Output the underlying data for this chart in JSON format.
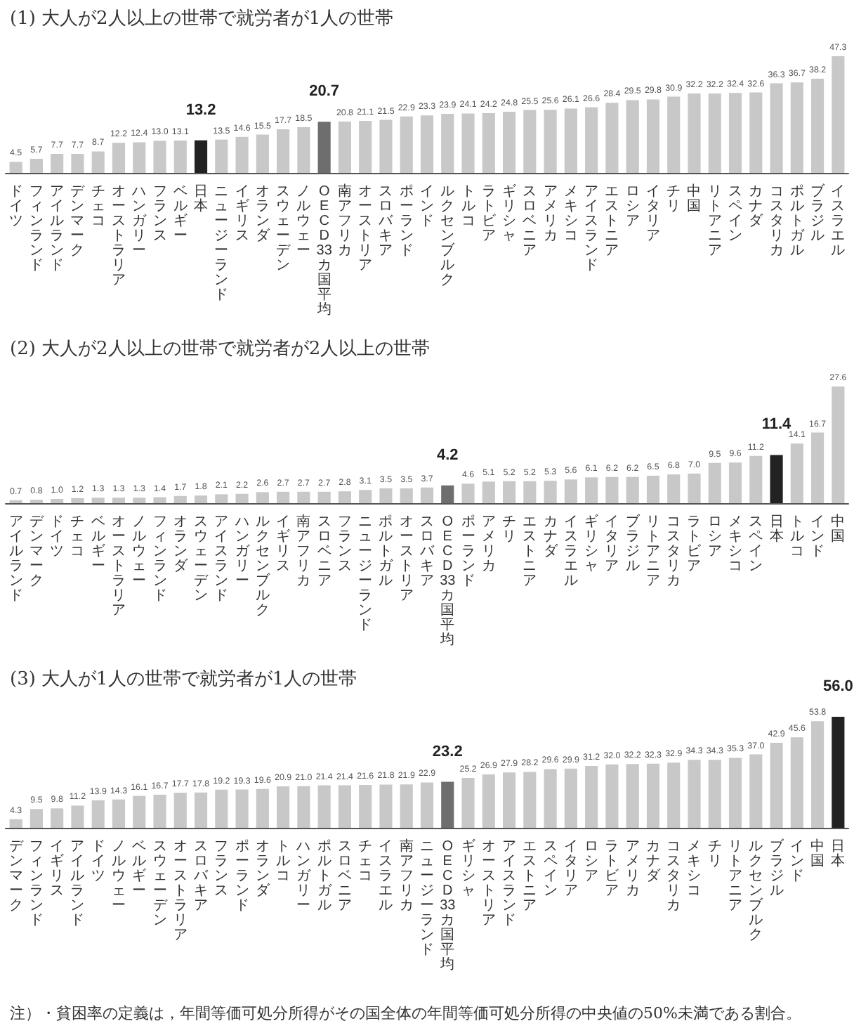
{
  "chart_data": [
    {
      "type": "bar",
      "title": "(1) 大人が2人以上の世帯で就労者が1人の世帯",
      "value_labels": [
        "4.5",
        "5.7",
        "7.7",
        "7.7",
        "8.7",
        "12.2",
        "12.4",
        "13.0",
        "13.1",
        "13.2",
        "13.5",
        "14.6",
        "15.5",
        "17.7",
        "18.5",
        "20.7",
        "20.8",
        "21.1",
        "21.5",
        "22.9",
        "23.3",
        "23.9",
        "24.1",
        "24.2",
        "24.8",
        "25.5",
        "25.6",
        "26.1",
        "26.6",
        "28.4",
        "29.5",
        "29.8",
        "30.9",
        "32.2",
        "32.2",
        "32.4",
        "32.6",
        "36.3",
        "36.7",
        "38.2",
        "47.3"
      ],
      "categories": [
        "ドイツ",
        "フィンランド",
        "アイルランド",
        "デンマーク",
        "チェコ",
        "オーストラリア",
        "ハンガリー",
        "フランス",
        "ベルギー",
        "日本",
        "ニュージーランド",
        "イギリス",
        "オランダ",
        "スウェーデン",
        "ノルウェー",
        "OECD33カ国平均",
        "南アフリカ",
        "オーストリア",
        "スロバキア",
        "ポーランド",
        "インド",
        "ルクセンブルク",
        "トルコ",
        "ラトビア",
        "ギリシャ",
        "スロベニア",
        "アメリカ",
        "メキシコ",
        "アイスランド",
        "エストニア",
        "ロシア",
        "イタリア",
        "チリ",
        "中国",
        "リトアニア",
        "スペイン",
        "カナダ",
        "コスタリカ",
        "ポルトガル",
        "ブラジル",
        "イスラエル"
      ],
      "values": [
        4.5,
        5.7,
        7.7,
        7.7,
        8.7,
        12.2,
        12.4,
        13.0,
        13.1,
        13.2,
        13.5,
        14.6,
        15.5,
        17.7,
        18.5,
        20.7,
        20.8,
        21.1,
        21.5,
        22.9,
        23.3,
        23.9,
        24.1,
        24.2,
        24.8,
        25.5,
        25.6,
        26.1,
        26.6,
        28.4,
        29.5,
        29.8,
        30.9,
        32.2,
        32.2,
        32.4,
        32.6,
        36.3,
        36.7,
        38.2,
        47.3
      ],
      "colors": [
        "#c8c8c8",
        "#c8c8c8",
        "#c8c8c8",
        "#c8c8c8",
        "#c8c8c8",
        "#c8c8c8",
        "#c8c8c8",
        "#c8c8c8",
        "#c8c8c8",
        "#222222",
        "#c8c8c8",
        "#c8c8c8",
        "#c8c8c8",
        "#c8c8c8",
        "#c8c8c8",
        "#6e6e6e",
        "#c8c8c8",
        "#c8c8c8",
        "#c8c8c8",
        "#c8c8c8",
        "#c8c8c8",
        "#c8c8c8",
        "#c8c8c8",
        "#c8c8c8",
        "#c8c8c8",
        "#c8c8c8",
        "#c8c8c8",
        "#c8c8c8",
        "#c8c8c8",
        "#c8c8c8",
        "#c8c8c8",
        "#c8c8c8",
        "#c8c8c8",
        "#c8c8c8",
        "#c8c8c8",
        "#c8c8c8",
        "#c8c8c8",
        "#c8c8c8",
        "#c8c8c8",
        "#c8c8c8",
        "#c8c8c8"
      ]
    },
    {
      "type": "bar",
      "title": "(2) 大人が2人以上の世帯で就労者が2人以上の世帯",
      "value_labels": [
        "0.7",
        "0.8",
        "1.0",
        "1.2",
        "1.3",
        "1.3",
        "1.3",
        "1.4",
        "1.7",
        "1.8",
        "2.1",
        "2.2",
        "2.6",
        "2.7",
        "2.7",
        "2.7",
        "2.8",
        "3.1",
        "3.5",
        "3.5",
        "3.7",
        "4.2",
        "4.6",
        "5.1",
        "5.2",
        "5.2",
        "5.3",
        "5.6",
        "6.1",
        "6.2",
        "6.2",
        "6.5",
        "6.8",
        "7.0",
        "9.5",
        "9.6",
        "11.2",
        "11.4",
        "14.1",
        "16.7",
        "27.6"
      ],
      "categories": [
        "アイルランド",
        "デンマーク",
        "ドイツ",
        "チェコ",
        "ベルギー",
        "オーストラリア",
        "ノルウェー",
        "フィンランド",
        "オランダ",
        "スウェーデン",
        "アイスランド",
        "ハンガリー",
        "ルクセンブルク",
        "イギリス",
        "南アフリカ",
        "スロベニア",
        "フランス",
        "ニュージーランド",
        "ポルトガル",
        "オーストリア",
        "スロバキア",
        "OECD33カ国平均",
        "ポーランド",
        "アメリカ",
        "チリ",
        "エストニア",
        "カナダ",
        "イスラエル",
        "ギリシャ",
        "イタリア",
        "ブラジル",
        "リトアニア",
        "コスタリカ",
        "ラトビア",
        "ロシア",
        "メキシコ",
        "スペイン",
        "日本",
        "トルコ",
        "インド",
        "中国"
      ],
      "values": [
        0.7,
        0.8,
        1.0,
        1.2,
        1.3,
        1.3,
        1.3,
        1.4,
        1.7,
        1.8,
        2.1,
        2.2,
        2.6,
        2.7,
        2.7,
        2.7,
        2.8,
        3.1,
        3.5,
        3.5,
        3.7,
        4.2,
        4.6,
        5.1,
        5.2,
        5.2,
        5.3,
        5.6,
        6.1,
        6.2,
        6.2,
        6.5,
        6.8,
        7.0,
        9.5,
        9.6,
        11.2,
        11.4,
        14.1,
        16.7,
        27.6
      ],
      "colors": [
        "#c8c8c8",
        "#c8c8c8",
        "#c8c8c8",
        "#c8c8c8",
        "#c8c8c8",
        "#c8c8c8",
        "#c8c8c8",
        "#c8c8c8",
        "#c8c8c8",
        "#c8c8c8",
        "#c8c8c8",
        "#c8c8c8",
        "#c8c8c8",
        "#c8c8c8",
        "#c8c8c8",
        "#c8c8c8",
        "#c8c8c8",
        "#c8c8c8",
        "#c8c8c8",
        "#c8c8c8",
        "#c8c8c8",
        "#6e6e6e",
        "#c8c8c8",
        "#c8c8c8",
        "#c8c8c8",
        "#c8c8c8",
        "#c8c8c8",
        "#c8c8c8",
        "#c8c8c8",
        "#c8c8c8",
        "#c8c8c8",
        "#c8c8c8",
        "#c8c8c8",
        "#c8c8c8",
        "#c8c8c8",
        "#c8c8c8",
        "#c8c8c8",
        "#222222",
        "#c8c8c8",
        "#c8c8c8",
        "#c8c8c8"
      ]
    },
    {
      "type": "bar",
      "title": "(3) 大人が1人の世帯で就労者が1人の世帯",
      "value_labels": [
        "4.3",
        "9.5",
        "9.8",
        "11.2",
        "13.9",
        "14.3",
        "16.1",
        "16.7",
        "17.7",
        "17.8",
        "19.2",
        "19.3",
        "19.6",
        "20.9",
        "21.0",
        "21.4",
        "21.4",
        "21.6",
        "21.8",
        "21.9",
        "22.9",
        "23.2",
        "25.2",
        "26.9",
        "27.9",
        "28.2",
        "29.6",
        "29.9",
        "31.2",
        "32.0",
        "32.2",
        "32.3",
        "32.9",
        "34.3",
        "34.3",
        "35.3",
        "37.0",
        "42.9",
        "45.6",
        "53.8",
        "56.0"
      ],
      "categories": [
        "デンマーク",
        "フィンランド",
        "イギリス",
        "アイルランド",
        "ドイツ",
        "ノルウェー",
        "ベルギー",
        "スウェーデン",
        "オーストラリア",
        "スロバキア",
        "フランス",
        "ポーランド",
        "オランダ",
        "トルコ",
        "ハンガリー",
        "ポルトガル",
        "スロベニア",
        "チェコ",
        "イスラエル",
        "南アフリカ",
        "ニュージーランド",
        "OECD33カ国平均",
        "ギリシャ",
        "オーストリア",
        "アイスランド",
        "エストニア",
        "スペイン",
        "イタリア",
        "ロシア",
        "ラトビア",
        "アメリカ",
        "カナダ",
        "コスタリカ",
        "メキシコ",
        "チリ",
        "リトアニア",
        "ルクセンブルク",
        "ブラジル",
        "インド",
        "中国",
        "日本"
      ],
      "values": [
        4.3,
        9.5,
        9.8,
        11.2,
        13.9,
        14.3,
        16.1,
        16.7,
        17.7,
        17.8,
        19.2,
        19.3,
        19.6,
        20.9,
        21.0,
        21.4,
        21.4,
        21.6,
        21.8,
        21.9,
        22.9,
        23.2,
        25.2,
        26.9,
        27.9,
        28.2,
        29.6,
        29.9,
        31.2,
        32.0,
        32.2,
        32.3,
        32.9,
        34.3,
        34.3,
        35.3,
        37.0,
        42.9,
        45.6,
        53.8,
        56.0
      ],
      "colors": [
        "#c8c8c8",
        "#c8c8c8",
        "#c8c8c8",
        "#c8c8c8",
        "#c8c8c8",
        "#c8c8c8",
        "#c8c8c8",
        "#c8c8c8",
        "#c8c8c8",
        "#c8c8c8",
        "#c8c8c8",
        "#c8c8c8",
        "#c8c8c8",
        "#c8c8c8",
        "#c8c8c8",
        "#c8c8c8",
        "#c8c8c8",
        "#c8c8c8",
        "#c8c8c8",
        "#c8c8c8",
        "#c8c8c8",
        "#6e6e6e",
        "#c8c8c8",
        "#c8c8c8",
        "#c8c8c8",
        "#c8c8c8",
        "#c8c8c8",
        "#c8c8c8",
        "#c8c8c8",
        "#c8c8c8",
        "#c8c8c8",
        "#c8c8c8",
        "#c8c8c8",
        "#c8c8c8",
        "#c8c8c8",
        "#c8c8c8",
        "#c8c8c8",
        "#c8c8c8",
        "#c8c8c8",
        "#c8c8c8",
        "#222222"
      ],
      "annotations": [
        "注）・貧困率の定義は，年間等価可処分所得がその国全体の年間等価可処分所得の中央値の50%未満である割合。"
      ]
    }
  ]
}
